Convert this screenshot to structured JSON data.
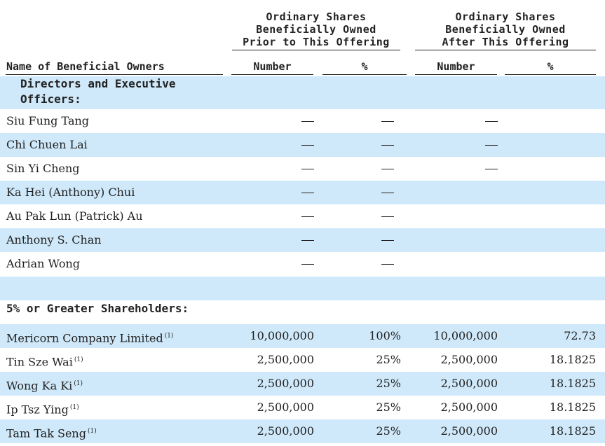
{
  "header": {
    "prior_title": [
      "Ordinary Shares",
      "Beneficially Owned",
      "Prior to This Offering"
    ],
    "after_title": [
      "Ordinary Shares",
      "Beneficially Owned",
      "After This Offering"
    ],
    "col_name": "Name of Beneficial Owners",
    "col_number": "Number",
    "col_percent": "%"
  },
  "sections": {
    "directors": "Directors and Executive Officers:",
    "greater": "5% or Greater Shareholders:"
  },
  "directors": [
    {
      "name": "Siu Fung Tang",
      "prior_number": "—",
      "prior_percent": "—",
      "after_number": "—",
      "after_percent": ""
    },
    {
      "name": "Chi Chuen Lai",
      "prior_number": "—",
      "prior_percent": "—",
      "after_number": "—",
      "after_percent": ""
    },
    {
      "name": "Sin Yi Cheng",
      "prior_number": "—",
      "prior_percent": "—",
      "after_number": "—",
      "after_percent": ""
    },
    {
      "name": "Ka Hei (Anthony) Chui",
      "prior_number": "—",
      "prior_percent": "—",
      "after_number": "",
      "after_percent": ""
    },
    {
      "name": "Au Pak Lun (Patrick) Au",
      "prior_number": "—",
      "prior_percent": "—",
      "after_number": "",
      "after_percent": ""
    },
    {
      "name": "Anthony S. Chan",
      "prior_number": "—",
      "prior_percent": "—",
      "after_number": "",
      "after_percent": ""
    },
    {
      "name": "Adrian Wong",
      "prior_number": "—",
      "prior_percent": "—",
      "after_number": "",
      "after_percent": ""
    }
  ],
  "shareholders": [
    {
      "name": "Mericorn Company Limited",
      "note": "(1)",
      "prior_number": "10,000,000",
      "prior_percent": "100%",
      "after_number": "10,000,000",
      "after_percent": "72.73"
    },
    {
      "name": "Tin Sze Wai",
      "note": "(1)",
      "prior_number": "2,500,000",
      "prior_percent": "25%",
      "after_number": "2,500,000",
      "after_percent": "18.1825"
    },
    {
      "name": "Wong Ka Ki",
      "note": "(1)",
      "prior_number": "2,500,000",
      "prior_percent": "25%",
      "after_number": "2,500,000",
      "after_percent": "18.1825"
    },
    {
      "name": "Ip Tsz Ying",
      "note": "(1)",
      "prior_number": "2,500,000",
      "prior_percent": "25%",
      "after_number": "2,500,000",
      "after_percent": "18.1825"
    },
    {
      "name": "Tam Tak Seng",
      "note": "(1)",
      "prior_number": "2,500,000",
      "prior_percent": "25%",
      "after_number": "2,500,000",
      "after_percent": "18.1825"
    }
  ]
}
